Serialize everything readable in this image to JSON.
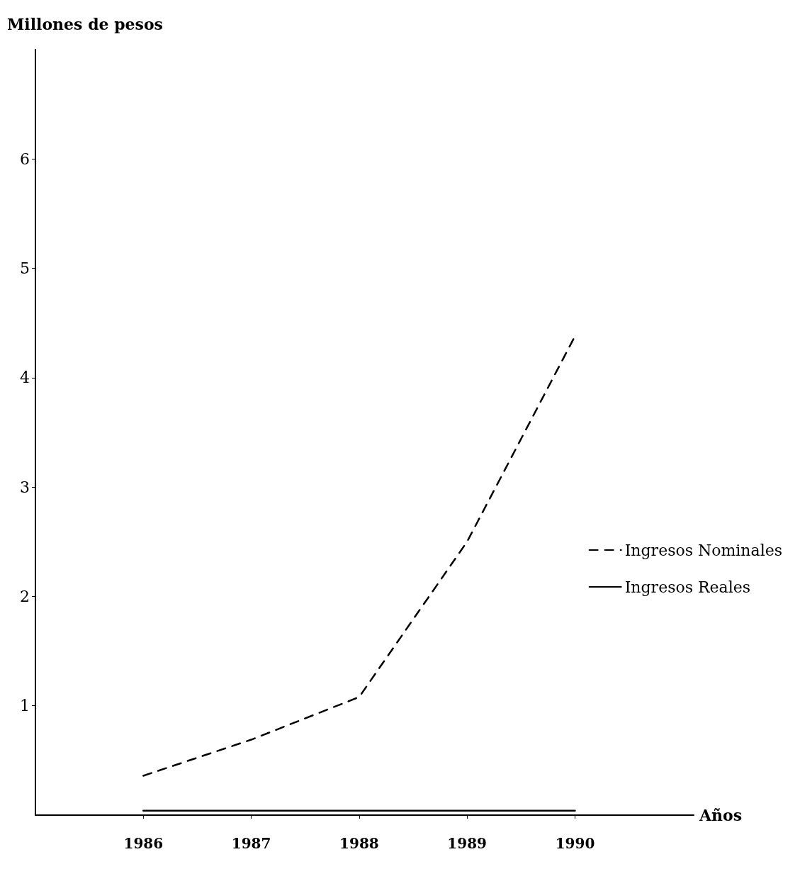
{
  "chart_data": {
    "type": "line",
    "xlabel": "Años",
    "ylabel": "Millones de pesos",
    "x": [
      1986,
      1987,
      1988,
      1989,
      1990
    ],
    "xlim": [
      1985,
      1991.1
    ],
    "xticks": [
      1986,
      1987,
      1988,
      1989,
      1990
    ],
    "ylim": [
      0,
      7
    ],
    "yticks": [
      1,
      2,
      3,
      4,
      5,
      6
    ],
    "series": [
      {
        "name": "Ingresos Nominales",
        "color": "#000000",
        "values": [
          0.36,
          0.69,
          1.08,
          2.5,
          4.38
        ],
        "line_style": "dashed"
      },
      {
        "name": "Ingresos Reales",
        "color": "#000000",
        "values": [
          0.04,
          0.04,
          0.04,
          0.04,
          0.04
        ],
        "line_style": "solid"
      }
    ],
    "legend": "right",
    "grid": false,
    "marker": "none"
  }
}
